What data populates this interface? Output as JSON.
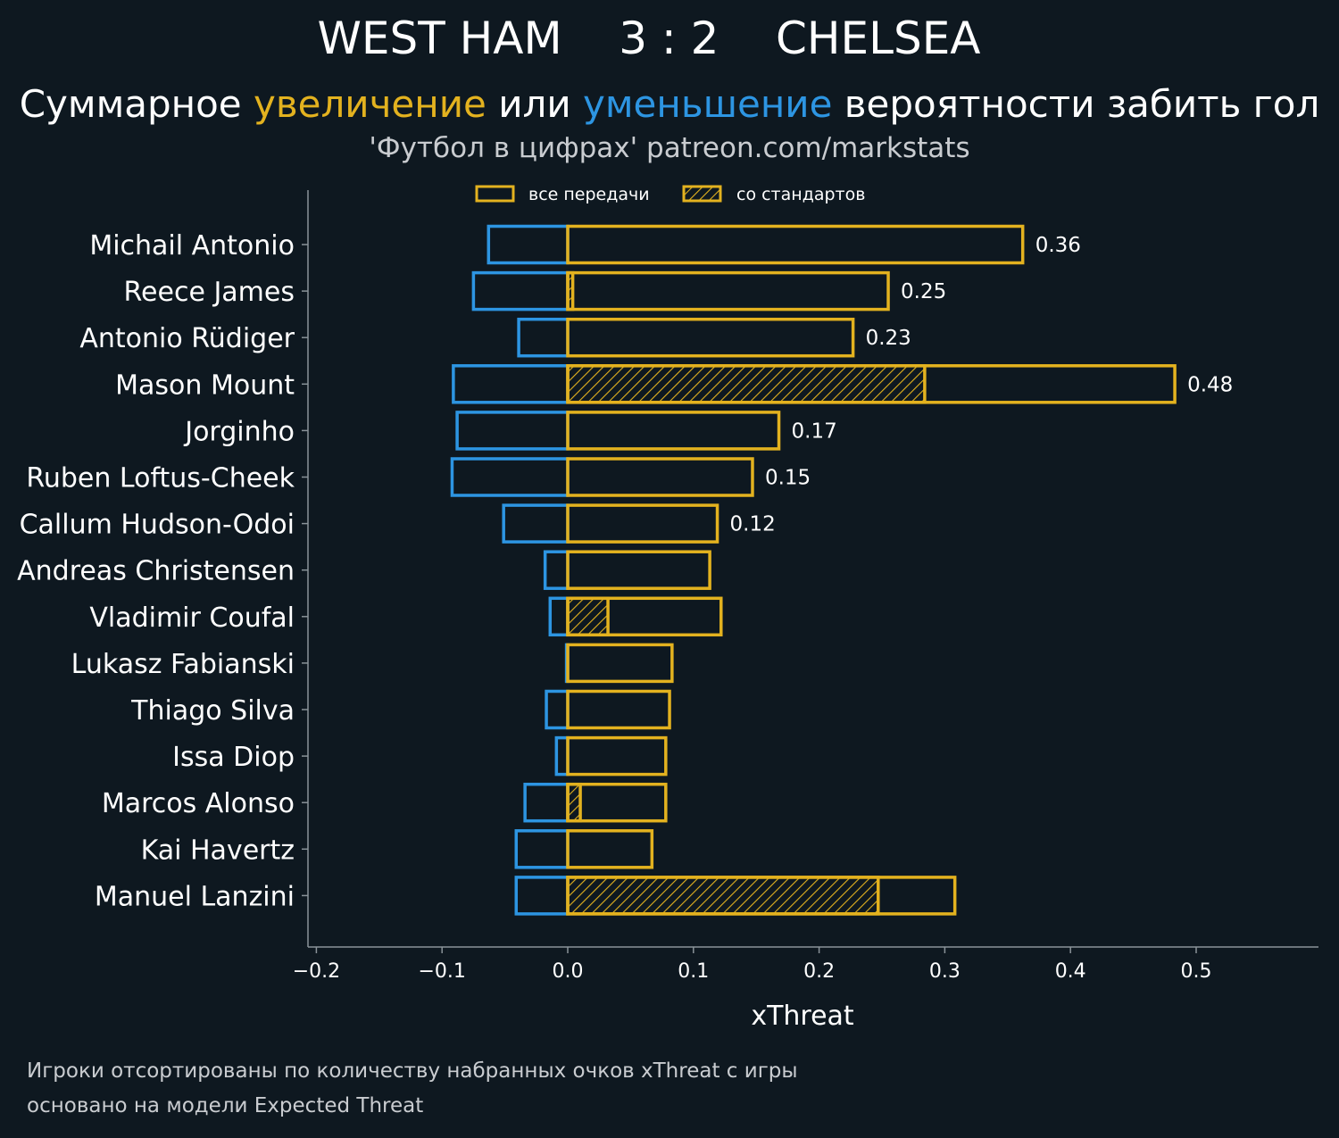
{
  "header": {
    "title": "WEST HAM    3 : 2    CHELSEA",
    "subtitle_pre": "Суммарное ",
    "subtitle_inc": "увеличение",
    "subtitle_mid": " или ",
    "subtitle_dec": "уменьшение",
    "subtitle_post": " вероятности забить гол",
    "source": "'Футбол в цифрах' patreon.com/markstats"
  },
  "footer": {
    "line1": "Игроки отсортированы по количеству набранных очков xThreat с игры",
    "line2": "основано на модели Expected Threat"
  },
  "colors": {
    "background": "#0e1820",
    "increase": "#e3b21f",
    "decrease": "#2d95e2",
    "axis": "#8a9399"
  },
  "chart_data": {
    "type": "bar",
    "orientation": "horizontal",
    "xlabel": "xThreat",
    "xlim": [
      -0.205,
      0.595
    ],
    "xticks": [
      -0.2,
      -0.1,
      0.0,
      0.1,
      0.2,
      0.3,
      0.4,
      0.5
    ],
    "xtick_labels": [
      "−0.2",
      "−0.1",
      "0.0",
      "0.1",
      "0.2",
      "0.3",
      "0.4",
      "0.5"
    ],
    "legend": {
      "position": "top",
      "items": [
        "все передачи",
        "со стандартов"
      ]
    },
    "categories": [
      "Michail Antonio",
      "Reece James",
      "Antonio Rüdiger",
      "Mason Mount",
      "Jorginho",
      "Ruben Loftus-Cheek",
      "Callum Hudson-Odoi",
      "Andreas Christensen",
      "Vladimir Coufal",
      "Lukasz Fabianski",
      "Thiago Silva",
      "Issa Diop",
      "Marcos Alonso",
      "Kai Havertz",
      "Manuel Lanzini"
    ],
    "series": [
      {
        "name": "все передачи",
        "values": [
          0.362,
          0.255,
          0.227,
          0.483,
          0.168,
          0.147,
          0.119,
          0.113,
          0.122,
          0.083,
          0.081,
          0.078,
          0.078,
          0.067,
          0.308
        ]
      },
      {
        "name": "со стандартов",
        "values": [
          0,
          0.004,
          0,
          0.284,
          0,
          0,
          0,
          0,
          0.032,
          0,
          0,
          0,
          0.01,
          0,
          0.247
        ]
      },
      {
        "values": [
          -0.063,
          -0.075,
          -0.039,
          -0.091,
          -0.088,
          -0.092,
          -0.051,
          -0.018,
          -0.014,
          -0.001,
          -0.017,
          -0.009,
          -0.034,
          -0.041,
          -0.041
        ]
      }
    ],
    "data_labels": [
      "0.36",
      "0.25",
      "0.23",
      "0.48",
      "0.17",
      "0.15",
      "0.12",
      "",
      "",
      "",
      "",
      "",
      "",
      "",
      ""
    ]
  }
}
